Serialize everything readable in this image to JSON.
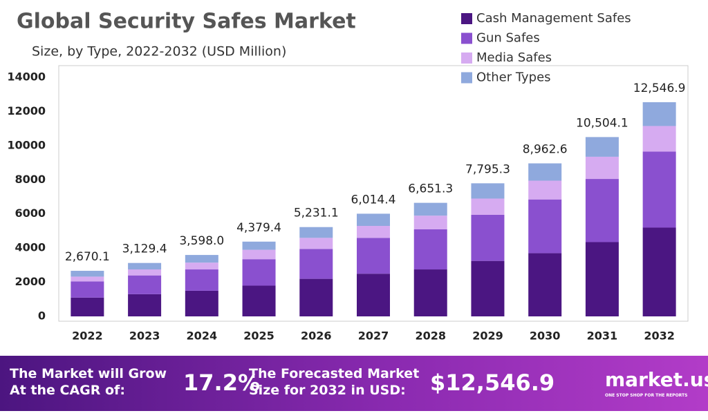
{
  "chart_data": {
    "type": "stacked_bar",
    "title": "Global Security Safes Market",
    "subtitle": "Size, by Type, 2022-2032 (USD Million)",
    "categories": [
      "2022",
      "2023",
      "2024",
      "2025",
      "2026",
      "2027",
      "2028",
      "2029",
      "2030",
      "2031",
      "2032"
    ],
    "series": [
      {
        "name": "Cash Management Safes",
        "color": "#4b1682",
        "values": [
          1100,
          1300,
          1500,
          1800,
          2200,
          2500,
          2750,
          3250,
          3700,
          4350,
          5200
        ]
      },
      {
        "name": "Gun Safes",
        "color": "#8a50cf",
        "values": [
          950,
          1100,
          1250,
          1550,
          1750,
          2100,
          2350,
          2700,
          3150,
          3700,
          4450
        ]
      },
      {
        "name": "Media Safes",
        "color": "#d6abf1",
        "values": [
          280,
          350,
          400,
          550,
          650,
          700,
          800,
          950,
          1100,
          1300,
          1500
        ]
      },
      {
        "name": "Other Types",
        "color": "#8fa9dd",
        "values": [
          340,
          379,
          448,
          479,
          631,
          714,
          751,
          895,
          1013,
          1154,
          1397
        ]
      }
    ],
    "totals": {
      "values": [
        2670.1,
        3129.4,
        3598.0,
        4379.4,
        5231.1,
        6014.4,
        6651.3,
        7795.3,
        8962.6,
        10504.1,
        12546.9
      ],
      "value_labels": [
        "2,670.1",
        "3,129.4",
        "3,598.0",
        "4,379.4",
        "5,231.1",
        "6,014.4",
        "6,651.3",
        "7,795.3",
        "8,962.6",
        "10,504.1",
        "12,546.9"
      ]
    },
    "ylim": [
      0,
      14000
    ],
    "yticks": [
      0,
      2000,
      4000,
      6000,
      8000,
      10000,
      12000,
      14000
    ],
    "legend": "top-right"
  },
  "footer": {
    "cagr_label": [
      "The Market will Grow",
      "At the CAGR of:"
    ],
    "cagr": "17.2%",
    "forecast_label": [
      "The Forecasted Market",
      "Size for 2032 in USD:"
    ],
    "forecast": "$12,546.9",
    "brand": "market.us",
    "tagline": "ONE STOP SHOP FOR THE REPORTS"
  }
}
